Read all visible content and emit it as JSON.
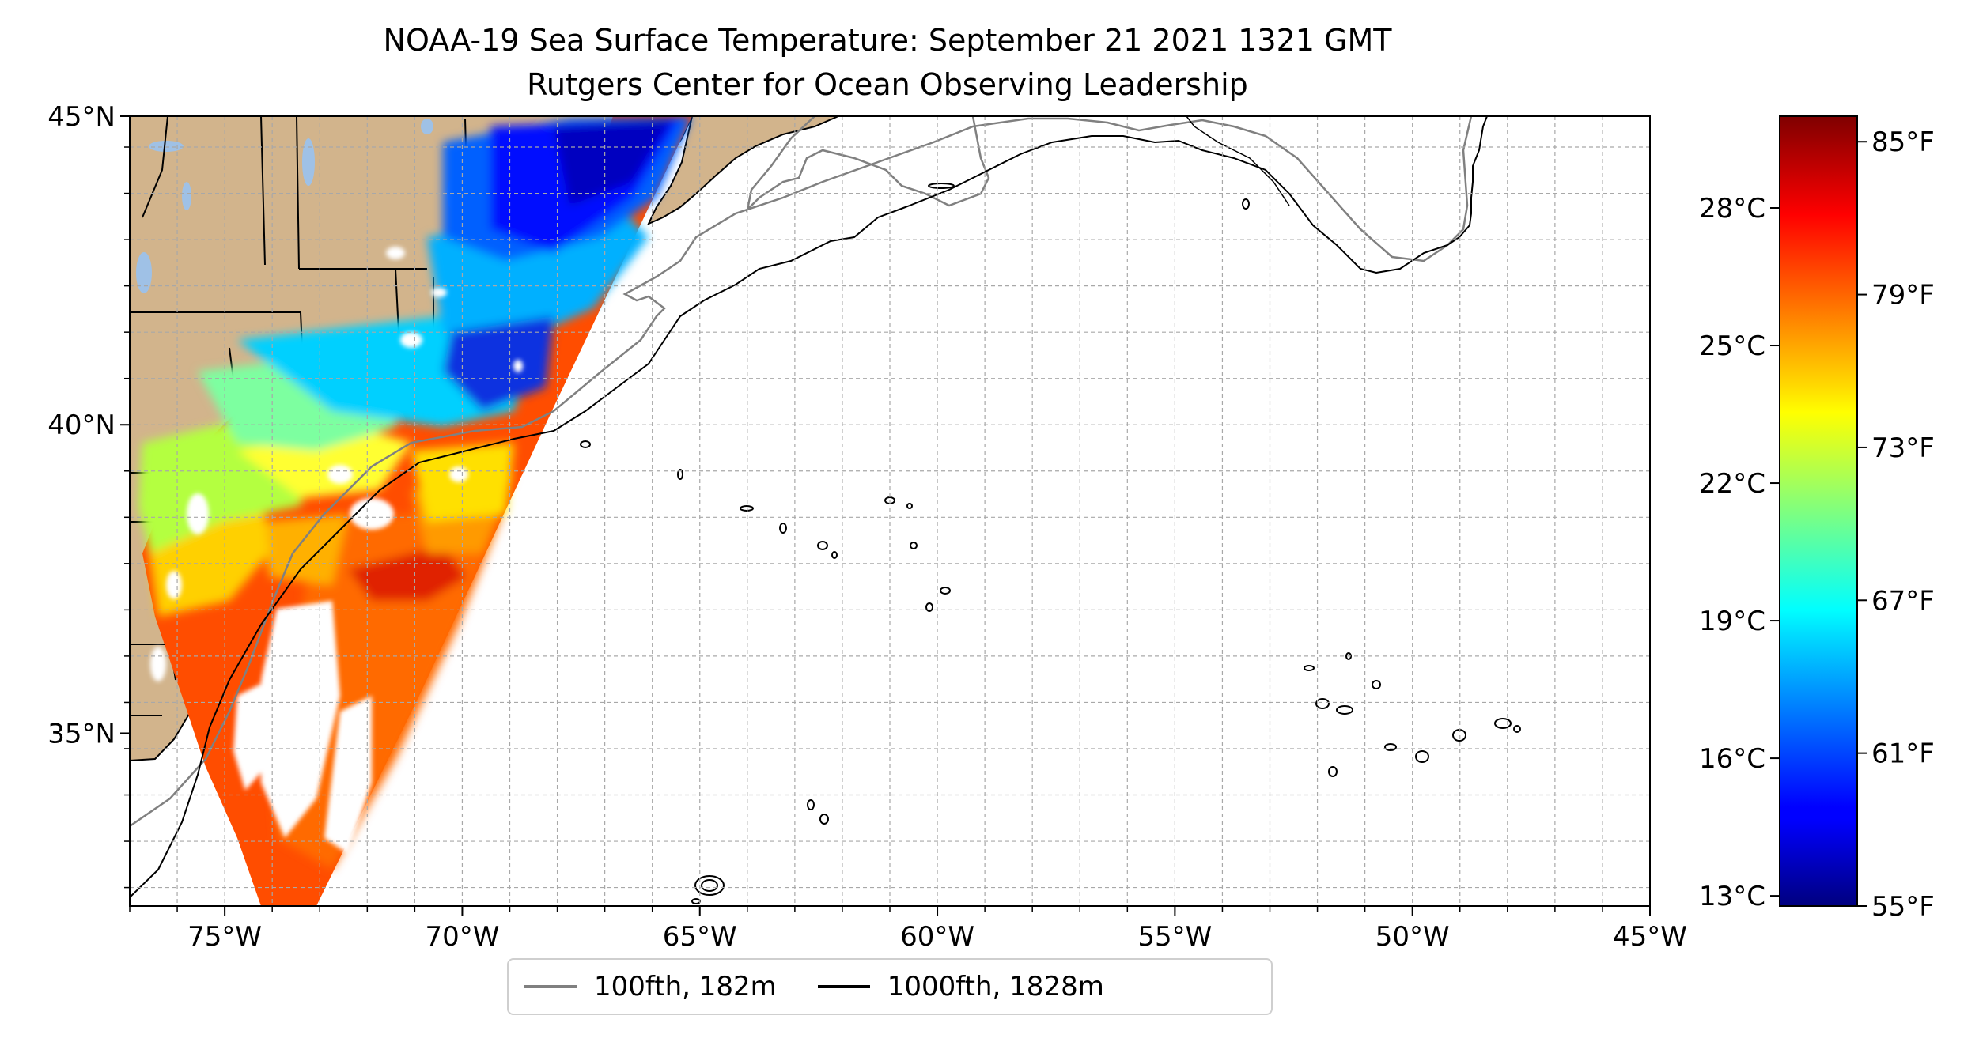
{
  "title": "NOAA-19 Sea Surface Temperature: September 21 2021 1321 GMT",
  "subtitle": "Rutgers Center for Ocean Observing Leadership",
  "map": {
    "lon_range": [
      -77,
      -45
    ],
    "lat_range": [
      32.2,
      45
    ],
    "lon_ticks": [
      {
        "value": -75,
        "label": "75°W"
      },
      {
        "value": -70,
        "label": "70°W"
      },
      {
        "value": -65,
        "label": "65°W"
      },
      {
        "value": -60,
        "label": "60°W"
      },
      {
        "value": -55,
        "label": "55°W"
      },
      {
        "value": -50,
        "label": "50°W"
      },
      {
        "value": -45,
        "label": "45°W"
      }
    ],
    "lat_ticks": [
      {
        "value": 45,
        "label": "45°N"
      },
      {
        "value": 40,
        "label": "40°N"
      },
      {
        "value": 35,
        "label": "35°N"
      }
    ],
    "gridlines": "dashed",
    "colors": {
      "land": "#d2b48c",
      "lakes": "#9fc1e6",
      "isobath_100": "#808080",
      "isobath_1000": "#000000"
    }
  },
  "colorbar": {
    "colormap": "jet",
    "f_range": [
      55,
      86
    ],
    "c_ticks": [
      {
        "value": 13,
        "label": "13°C"
      },
      {
        "value": 16,
        "label": "16°C"
      },
      {
        "value": 19,
        "label": "19°C"
      },
      {
        "value": 22,
        "label": "22°C"
      },
      {
        "value": 25,
        "label": "25°C"
      },
      {
        "value": 28,
        "label": "28°C"
      }
    ],
    "f_ticks": [
      {
        "value": 55,
        "label": "55°F"
      },
      {
        "value": 61,
        "label": "61°F"
      },
      {
        "value": 67,
        "label": "67°F"
      },
      {
        "value": 73,
        "label": "73°F"
      },
      {
        "value": 79,
        "label": "79°F"
      },
      {
        "value": 85,
        "label": "85°F"
      }
    ]
  },
  "legend": [
    {
      "label": "100fth, 182m",
      "color": "#808080"
    },
    {
      "label": "1000fth, 1828m",
      "color": "#000000"
    }
  ]
}
